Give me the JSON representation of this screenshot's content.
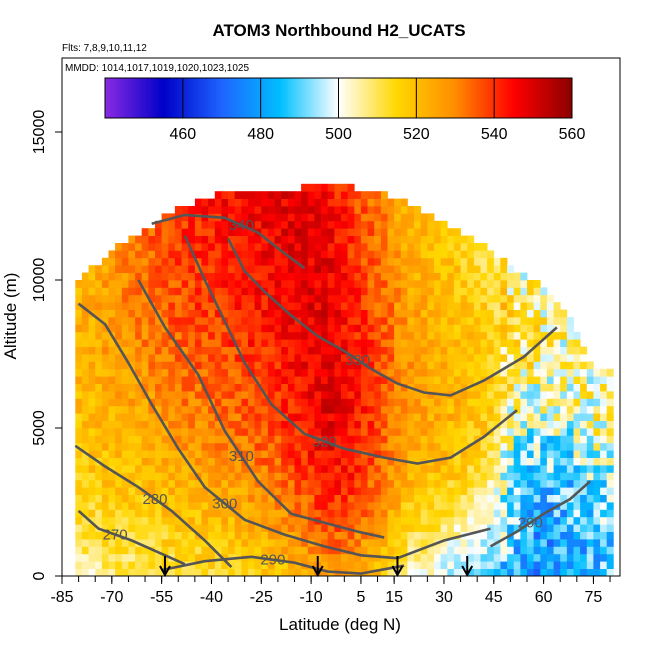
{
  "chart_data": {
    "type": "heatmap",
    "title": "ATOM3 Northbound H2_UCATS",
    "subtitle_flights": "Flts: 7,8,9,10,11,12",
    "subtitle_dates": "MMDD: 1014,1017,1019,1020,1023,1025",
    "xlabel": "Latitude (deg N)",
    "ylabel": "Altitude (m)",
    "xlim": [
      -85,
      83
    ],
    "ylim": [
      0,
      17500
    ],
    "x_ticks": [
      -85,
      -70,
      -55,
      -40,
      -25,
      -10,
      5,
      15,
      30,
      45,
      60,
      75
    ],
    "y_ticks": [
      0,
      5000,
      10000,
      15000
    ],
    "colorbar": {
      "range": [
        440,
        560
      ],
      "ticks": [
        460,
        480,
        500,
        520,
        540,
        560
      ],
      "colors": [
        "#8a2be2",
        "#0000c8",
        "#1e64ff",
        "#00bfff",
        "#ffffff",
        "#ffd700",
        "#ff8c00",
        "#ff0000",
        "#8b0000"
      ]
    },
    "heatmap_profile": [
      {
        "lat": -80,
        "top": 10000,
        "vals": [
          505,
          512,
          516,
          518,
          520,
          522,
          522,
          521
        ]
      },
      {
        "lat": -72,
        "top": 10800,
        "vals": [
          508,
          514,
          518,
          521,
          524,
          526,
          527,
          526
        ]
      },
      {
        "lat": -62,
        "top": 11500,
        "vals": [
          510,
          515,
          520,
          524,
          528,
          531,
          533,
          532
        ]
      },
      {
        "lat": -52,
        "top": 12300,
        "vals": [
          512,
          518,
          524,
          529,
          533,
          536,
          538,
          540
        ]
      },
      {
        "lat": -42,
        "top": 12700,
        "vals": [
          514,
          520,
          527,
          532,
          536,
          539,
          541,
          543
        ]
      },
      {
        "lat": -32,
        "top": 12900,
        "vals": [
          515,
          522,
          530,
          535,
          539,
          542,
          544,
          546
        ]
      },
      {
        "lat": -22,
        "top": 13000,
        "vals": [
          518,
          527,
          534,
          539,
          542,
          545,
          547,
          548
        ]
      },
      {
        "lat": -14,
        "top": 13000,
        "vals": [
          522,
          532,
          540,
          544,
          546,
          548,
          549,
          548
        ]
      },
      {
        "lat": -6,
        "top": 13200,
        "vals": [
          528,
          540,
          546,
          549,
          549,
          548,
          547,
          545
        ]
      },
      {
        "lat": 2,
        "top": 13000,
        "vals": [
          524,
          536,
          542,
          544,
          543,
          541,
          539,
          538
        ]
      },
      {
        "lat": 10,
        "top": 12800,
        "vals": [
          518,
          528,
          534,
          537,
          537,
          535,
          533,
          530
        ]
      },
      {
        "lat": 18,
        "top": 12500,
        "vals": [
          505,
          516,
          524,
          527,
          527,
          526,
          524,
          522
        ]
      },
      {
        "lat": 26,
        "top": 12000,
        "vals": [
          500,
          512,
          520,
          524,
          524,
          523,
          521,
          518
        ]
      },
      {
        "lat": 34,
        "top": 11500,
        "vals": [
          494,
          506,
          516,
          520,
          521,
          520,
          518,
          514
        ]
      },
      {
        "lat": 42,
        "top": 11000,
        "vals": [
          490,
          500,
          510,
          516,
          518,
          517,
          515,
          510
        ]
      },
      {
        "lat": 50,
        "top": 10300,
        "vals": [
          484,
          488,
          492,
          498,
          506,
          510,
          510,
          506
        ]
      },
      {
        "lat": 58,
        "top": 9800,
        "vals": [
          476,
          480,
          486,
          492,
          500,
          506,
          508,
          504
        ]
      },
      {
        "lat": 66,
        "top": 8800,
        "vals": [
          480,
          482,
          486,
          490,
          498,
          504,
          505,
          502
        ]
      },
      {
        "lat": 74,
        "top": 7000,
        "vals": [
          486,
          488,
          490,
          494,
          500,
          504,
          505,
          503
        ]
      }
    ],
    "contours": [
      {
        "label": "270",
        "x": [
          -80,
          -74,
          -64,
          -56,
          -48
        ],
        "y": [
          2200,
          1600,
          1200,
          800,
          400
        ]
      },
      {
        "label": "280",
        "x": [
          -81,
          -72,
          -62,
          -52,
          -42,
          -34
        ],
        "y": [
          4400,
          3700,
          3000,
          2200,
          1200,
          300
        ]
      },
      {
        "label": "290",
        "x": [
          -55,
          -42,
          -28,
          -15,
          -5,
          5,
          18
        ],
        "y": [
          200,
          500,
          650,
          450,
          150,
          80,
          350
        ]
      },
      {
        "label": "290",
        "x": [
          44,
          52,
          60,
          68,
          74
        ],
        "y": [
          1000,
          1500,
          2100,
          2600,
          3200
        ]
      },
      {
        "label": "300",
        "x": [
          -80,
          -72,
          -65,
          -58,
          -50,
          -42,
          -30,
          -18,
          -6,
          5,
          16,
          30,
          44
        ],
        "y": [
          9200,
          8500,
          7200,
          5800,
          4300,
          3000,
          1900,
          1400,
          1000,
          700,
          600,
          1200,
          1600
        ]
      },
      {
        "label": "310",
        "x": [
          -62,
          -54,
          -44,
          -36,
          -26,
          -16,
          -6,
          4,
          12
        ],
        "y": [
          10000,
          8400,
          6800,
          4900,
          3200,
          2100,
          1800,
          1500,
          1300
        ]
      },
      {
        "label": "320",
        "x": [
          -48,
          -42,
          -36,
          -30,
          -22,
          -12,
          0,
          12,
          22,
          32,
          42,
          52
        ],
        "y": [
          11500,
          10000,
          8600,
          7200,
          5800,
          4800,
          4300,
          4000,
          3800,
          4000,
          4700,
          5600
        ]
      },
      {
        "label": "330",
        "x": [
          -35,
          -30,
          -24,
          -16,
          -8,
          0,
          8,
          16,
          24,
          32,
          42,
          54,
          64
        ],
        "y": [
          11400,
          10300,
          9600,
          8800,
          8100,
          7600,
          7000,
          6500,
          6200,
          6100,
          6600,
          7400,
          8400
        ]
      },
      {
        "label": "340",
        "x": [
          -58,
          -48,
          -36,
          -26,
          -18,
          -12
        ],
        "y": [
          11900,
          12200,
          12100,
          11600,
          10900,
          10400
        ]
      }
    ],
    "arrows_lat": [
      -54,
      -8,
      16,
      37
    ]
  }
}
